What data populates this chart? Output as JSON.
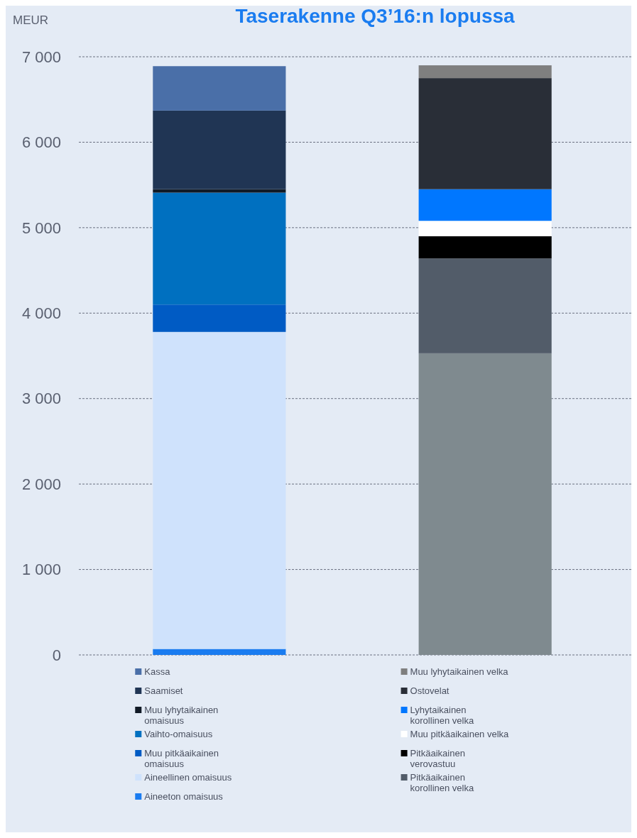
{
  "chart_data": {
    "type": "bar",
    "title": "Taserakenne Q3’16:n lopussa",
    "ylabel": "MEUR",
    "categories": [
      null,
      null
    ],
    "stacked": true,
    "grid": "y",
    "legend": "bottom",
    "ylim": [
      0,
      7000
    ],
    "yticks": [
      0,
      {
        "value": 1000,
        "label": "1 000"
      },
      {
        "value": 2000,
        "label": "2 000"
      },
      {
        "value": 3000,
        "label": "3 000"
      },
      {
        "value": 4000,
        "label": "4 000"
      },
      {
        "value": 5000,
        "label": "5 000"
      },
      {
        "value": 6000,
        "label": "6 000"
      },
      {
        "value": 7000,
        "label": "7 000"
      }
    ],
    "series": [
      {
        "name": "Aineeton omaisuus",
        "color": "#1a7cf0",
        "values": [
          70,
          null
        ]
      },
      {
        "name": "Aineellinen omaisuus",
        "color": "#cfe2fc",
        "values": [
          3710,
          null
        ]
      },
      {
        "name": "Muu pitkäaikainen omaisuus",
        "color": "#005bc4",
        "values": [
          320,
          null
        ]
      },
      {
        "name": "Vaihto-omaisuus",
        "color": "#0070c0",
        "values": [
          1310,
          null
        ]
      },
      {
        "name": "Muu lyhytaikainen omaisuus",
        "color": "#111a26",
        "values": [
          40,
          null
        ]
      },
      {
        "name": "Saamiset",
        "color": "#203554",
        "values": [
          920,
          null
        ]
      },
      {
        "name": "Kassa",
        "color": "#4a6fa8",
        "values": [
          520,
          null
        ]
      },
      {
        "color": "#7f8a8f",
        "values": [
          null,
          3530
        ]
      },
      {
        "name": "Pitkäaikainen korollinen velka",
        "color": "#525c69",
        "values": [
          null,
          1110
        ]
      },
      {
        "name": "Pitkäaikainen verovastuu",
        "color": "#000000",
        "values": [
          null,
          260
        ]
      },
      {
        "name": "Muu pitkäaikainen velka",
        "color": "#ffffff",
        "values": [
          null,
          180
        ]
      },
      {
        "name": "Lyhytaikainen korollinen velka",
        "color": "#0077ff",
        "values": [
          null,
          370
        ]
      },
      {
        "name": "Ostovelat",
        "color": "#292e37",
        "values": [
          null,
          1300
        ]
      },
      {
        "name": "Muu lyhytaikainen velka",
        "color": "#7f7f7f",
        "values": [
          null,
          150
        ]
      }
    ]
  }
}
